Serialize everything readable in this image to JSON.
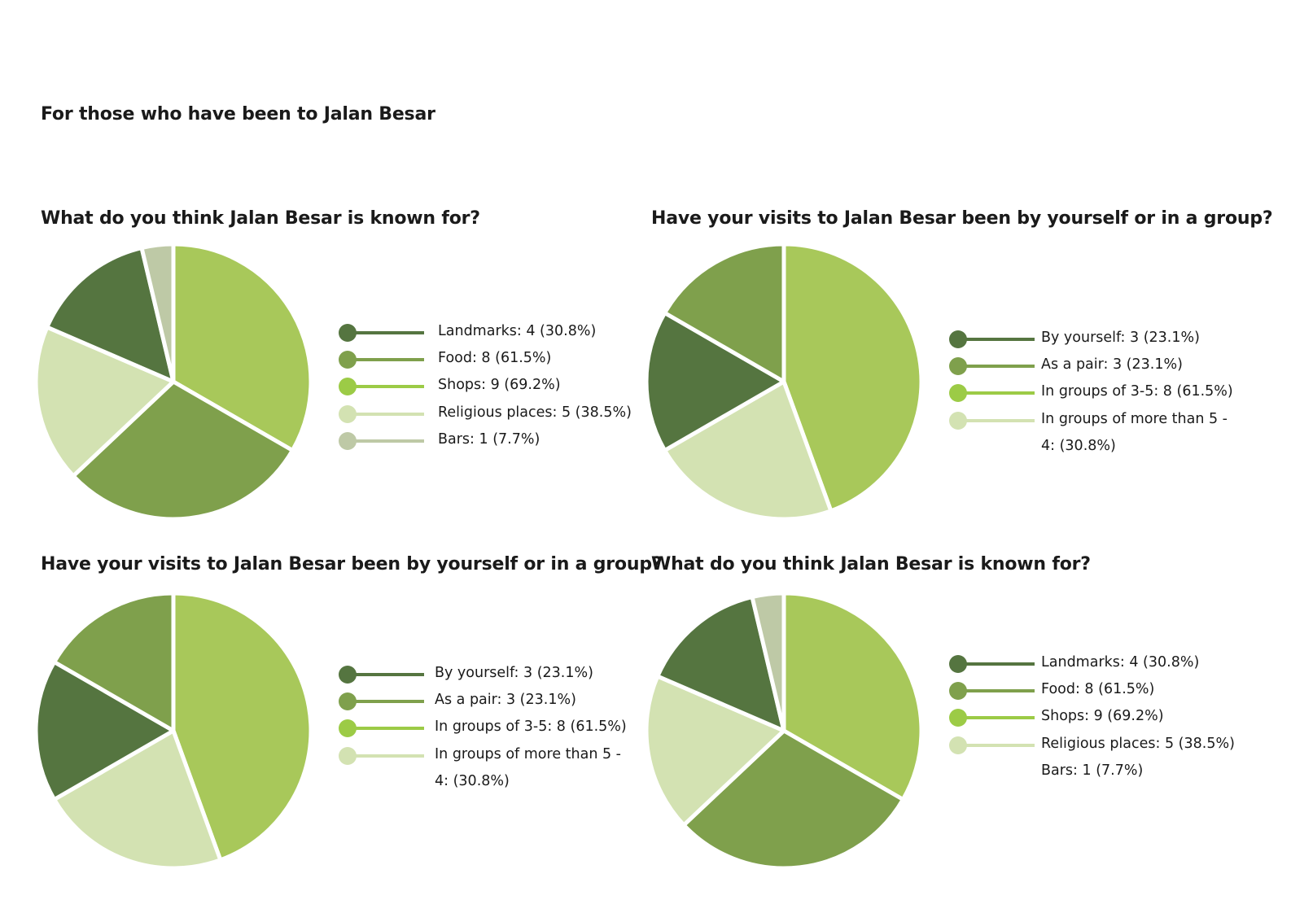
{
  "page_title": "For those who have been to Jalan Besar",
  "colors": {
    "dark_green": "#557540",
    "mid_green": "#7fa04c",
    "light_green": "#a8c85a",
    "pale_green": "#d3e2b2",
    "grey_green": "#bec9a6",
    "legend_light_green": "#9ccb46",
    "separator": "#ffffff"
  },
  "chart_data": [
    {
      "type": "pie",
      "title": "What do you think Jalan Besar is known for?",
      "labels": [
        "Landmarks",
        "Food",
        "Shops",
        "Religious places",
        "Bars"
      ],
      "counts": [
        4,
        8,
        9,
        5,
        1
      ],
      "percents": [
        30.8,
        61.5,
        69.2,
        38.5,
        7.7
      ],
      "legend_text": [
        "Landmarks: 4 (30.8%)",
        "Food: 8 (61.5%)",
        "Shops: 9 (69.2%)",
        "Religious places: 5 (38.5%)",
        "Bars: 1 (7.7%)"
      ],
      "slice_colors": [
        "#557540",
        "#7fa04c",
        "#a8c85a",
        "#d3e2b2",
        "#bec9a6"
      ],
      "legend_colors": [
        "#557540",
        "#7fa04c",
        "#9ccb46",
        "#d3e2b2",
        "#bec9a6"
      ],
      "legend_markers": [
        true,
        true,
        true,
        true,
        true
      ],
      "legend_placement": "right"
    },
    {
      "type": "pie",
      "title": "Have your visits to Jalan Besar been by yourself or in a group?",
      "labels": [
        "By yourself",
        "As a pair",
        "In groups of 3-5",
        "In groups of more than 5"
      ],
      "counts": [
        3,
        3,
        8,
        4
      ],
      "percents": [
        23.1,
        23.1,
        61.5,
        30.8
      ],
      "legend_text": [
        "By yourself: 3 (23.1%)",
        "As a pair: 3 (23.1%)",
        "In groups of 3-5: 8 (61.5%)",
        "In groups of more than 5 - 4: (30.8%)"
      ],
      "slice_colors": [
        "#557540",
        "#7fa04c",
        "#a8c85a",
        "#d3e2b2"
      ],
      "legend_colors": [
        "#557540",
        "#7fa04c",
        "#9ccb46",
        "#d3e2b2"
      ],
      "legend_markers": [
        true,
        true,
        true,
        true
      ],
      "legend_placement": "right"
    },
    {
      "type": "pie",
      "title": "Have your visits to Jalan Besar been by yourself or in a group?",
      "labels": [
        "By yourself",
        "As a pair",
        "In groups of 3-5",
        "In groups of more than 5"
      ],
      "counts": [
        3,
        3,
        8,
        4
      ],
      "percents": [
        23.1,
        23.1,
        61.5,
        30.8
      ],
      "legend_text": [
        "By yourself: 3 (23.1%)",
        "As a pair: 3 (23.1%)",
        "In groups of 3-5: 8 (61.5%)",
        "In groups of more than 5 - 4: (30.8%)"
      ],
      "slice_colors": [
        "#557540",
        "#7fa04c",
        "#a8c85a",
        "#d3e2b2"
      ],
      "legend_colors": [
        "#557540",
        "#7fa04c",
        "#9ccb46",
        "#d3e2b2"
      ],
      "legend_markers": [
        true,
        true,
        true,
        true
      ],
      "legend_placement": "right"
    },
    {
      "type": "pie",
      "title": "What do you think Jalan Besar is known for?",
      "labels": [
        "Landmarks",
        "Food",
        "Shops",
        "Religious places",
        "Bars"
      ],
      "counts": [
        4,
        8,
        9,
        5,
        1
      ],
      "percents": [
        30.8,
        61.5,
        69.2,
        38.5,
        7.7
      ],
      "legend_text": [
        "Landmarks: 4 (30.8%)",
        "Food: 8 (61.5%)",
        "Shops: 9 (69.2%)",
        "Religious places: 5 (38.5%)",
        "Bars: 1 (7.7%)"
      ],
      "slice_colors": [
        "#557540",
        "#7fa04c",
        "#a8c85a",
        "#d3e2b2",
        "#bec9a6"
      ],
      "legend_colors": [
        "#557540",
        "#7fa04c",
        "#9ccb46",
        "#d3e2b2",
        "#bec9a6"
      ],
      "legend_markers": [
        true,
        true,
        true,
        true,
        false
      ],
      "legend_placement": "right"
    }
  ]
}
